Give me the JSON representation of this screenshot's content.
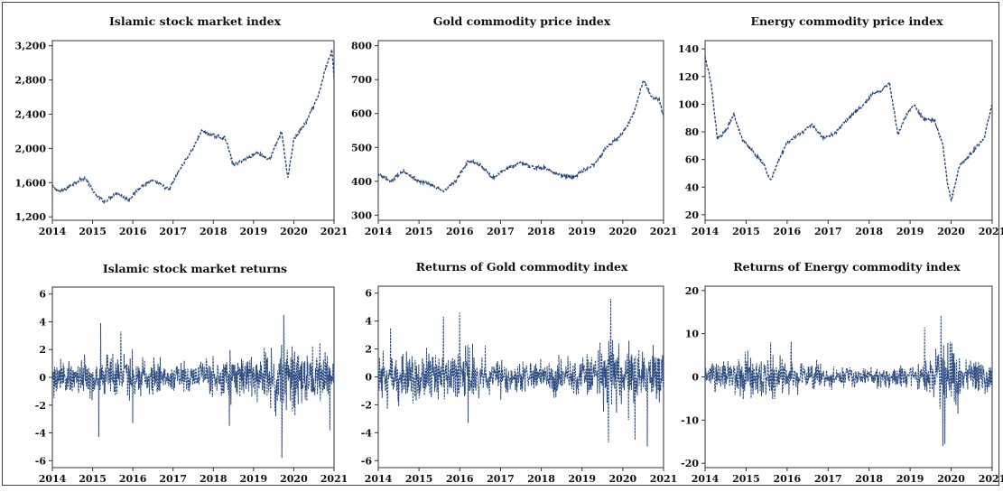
{
  "chart_data": [
    {
      "type": "line",
      "title": "Islamic stock market index",
      "x_ticks": [
        "2014",
        "2015",
        "2016",
        "2017",
        "2018",
        "2019",
        "2020",
        "2021"
      ],
      "ylim": [
        1160,
        3260
      ],
      "y_ticks": [
        1200,
        1600,
        2000,
        2400,
        2800,
        3200
      ],
      "y_tick_labels": [
        "1,200",
        "1,600",
        "2,000",
        "2,400",
        "2,800",
        "3,200"
      ],
      "series": [
        {
          "line_style": "dashed",
          "x": [
            2014.0,
            2014.2,
            2014.5,
            2014.8,
            2015.1,
            2015.3,
            2015.6,
            2015.9,
            2016.2,
            2016.5,
            2016.9,
            2017.2,
            2017.5,
            2017.7,
            2018.0,
            2018.3,
            2018.5,
            2018.8,
            2019.1,
            2019.4,
            2019.7,
            2019.85,
            2020.0,
            2020.3,
            2020.6,
            2020.8,
            2020.95,
            2021.0
          ],
          "values": [
            1550,
            1490,
            1580,
            1660,
            1440,
            1380,
            1480,
            1400,
            1560,
            1620,
            1520,
            1780,
            2000,
            2200,
            2150,
            2120,
            1800,
            1880,
            1950,
            1870,
            2200,
            1650,
            2100,
            2300,
            2600,
            2950,
            3150,
            2830
          ]
        }
      ]
    },
    {
      "type": "line",
      "title": "Gold commodity price index",
      "x_ticks": [
        "2014",
        "2015",
        "2016",
        "2017",
        "2018",
        "2019",
        "2020",
        "2021"
      ],
      "ylim": [
        285,
        815
      ],
      "y_ticks": [
        300,
        400,
        500,
        600,
        700,
        800
      ],
      "y_tick_labels": [
        "300",
        "400",
        "500",
        "600",
        "700",
        "800"
      ],
      "series": [
        {
          "line_style": "dashed",
          "x": [
            2014.0,
            2014.3,
            2014.6,
            2015.0,
            2015.3,
            2015.6,
            2015.9,
            2016.2,
            2016.5,
            2016.8,
            2017.2,
            2017.5,
            2017.8,
            2018.1,
            2018.4,
            2018.8,
            2019.0,
            2019.3,
            2019.6,
            2019.9,
            2020.1,
            2020.3,
            2020.5,
            2020.7,
            2020.9,
            2021.0
          ],
          "values": [
            420,
            400,
            430,
            400,
            390,
            370,
            400,
            460,
            450,
            410,
            440,
            455,
            440,
            440,
            420,
            410,
            430,
            450,
            500,
            530,
            560,
            610,
            700,
            650,
            640,
            590
          ]
        }
      ]
    },
    {
      "type": "line",
      "title": "Energy commodity price index",
      "x_ticks": [
        "2014",
        "2015",
        "2016",
        "2017",
        "2018",
        "2019",
        "2020",
        "2021"
      ],
      "ylim": [
        16,
        146
      ],
      "y_ticks": [
        20,
        40,
        60,
        80,
        100,
        120,
        140
      ],
      "y_tick_labels": [
        "20",
        "40",
        "60",
        "80",
        "100",
        "120",
        "140"
      ],
      "series": [
        {
          "line_style": "dashed",
          "x": [
            2014.0,
            2014.15,
            2014.3,
            2014.5,
            2014.7,
            2014.9,
            2015.1,
            2015.4,
            2015.6,
            2015.8,
            2016.0,
            2016.3,
            2016.6,
            2016.9,
            2017.2,
            2017.5,
            2017.8,
            2018.1,
            2018.3,
            2018.5,
            2018.7,
            2018.9,
            2019.1,
            2019.3,
            2019.6,
            2019.8,
            2019.9,
            2020.0,
            2020.2,
            2020.5,
            2020.8,
            2021.0
          ],
          "values": [
            135,
            115,
            75,
            80,
            93,
            75,
            68,
            58,
            45,
            60,
            72,
            78,
            85,
            75,
            80,
            90,
            98,
            108,
            110,
            115,
            78,
            92,
            100,
            90,
            88,
            70,
            45,
            30,
            55,
            65,
            75,
            100
          ]
        }
      ]
    },
    {
      "type": "line",
      "title": "Islamic stock market returns",
      "x_ticks": [
        "2014",
        "2015",
        "2016",
        "2017",
        "2018",
        "2019",
        "2020",
        "2021"
      ],
      "ylim": [
        -6.5,
        6.5
      ],
      "y_ticks": [
        -6,
        -4,
        -2,
        0,
        2,
        4,
        6
      ],
      "y_tick_labels": [
        "-6",
        "-4",
        "-2",
        "0",
        "2",
        "4",
        "6"
      ],
      "base_std": 0.55,
      "volatility_x": [
        2014.0,
        2015.0,
        2015.5,
        2016.5,
        2017.5,
        2018.2,
        2019.0,
        2019.7,
        2019.9,
        2020.3,
        2021.0
      ],
      "volatility_level": [
        1.0,
        1.3,
        1.6,
        1.1,
        0.9,
        1.5,
        1.2,
        2.8,
        2.2,
        1.4,
        1.8
      ],
      "spikes": [
        {
          "x": 2015.2,
          "value": 3.9
        },
        {
          "x": 2015.15,
          "value": -4.3
        },
        {
          "x": 2015.7,
          "value": 3.3
        },
        {
          "x": 2016.0,
          "value": -3.3
        },
        {
          "x": 2018.4,
          "value": -3.5
        },
        {
          "x": 2019.7,
          "value": -5.8
        },
        {
          "x": 2019.75,
          "value": 4.5
        },
        {
          "x": 2020.9,
          "value": -3.8
        }
      ]
    },
    {
      "type": "line",
      "title": "Returns of Gold commodity index",
      "x_ticks": [
        "2014",
        "2015",
        "2016",
        "2017",
        "2018",
        "2019",
        "2020",
        "2021"
      ],
      "ylim": [
        -6.5,
        6.5
      ],
      "y_ticks": [
        -6,
        -4,
        -2,
        0,
        2,
        4,
        6
      ],
      "y_tick_labels": [
        "-6",
        "-4",
        "-2",
        "0",
        "2",
        "4",
        "6"
      ],
      "base_std": 0.55,
      "volatility_x": [
        2014.0,
        2014.6,
        2015.5,
        2016.0,
        2016.8,
        2018.0,
        2019.0,
        2019.7,
        2020.0,
        2020.5,
        2021.0
      ],
      "volatility_level": [
        1.3,
        1.8,
        1.5,
        1.7,
        1.1,
        1.0,
        1.3,
        2.6,
        2.0,
        1.9,
        1.7
      ],
      "spikes": [
        {
          "x": 2014.3,
          "value": 3.5
        },
        {
          "x": 2015.6,
          "value": 4.3
        },
        {
          "x": 2016.0,
          "value": 4.6
        },
        {
          "x": 2016.2,
          "value": -3.3
        },
        {
          "x": 2019.7,
          "value": 5.6
        },
        {
          "x": 2019.65,
          "value": -4.7
        },
        {
          "x": 2020.6,
          "value": -5.0
        },
        {
          "x": 2020.3,
          "value": -4.5
        }
      ]
    },
    {
      "type": "line",
      "title": "Returns of Energy commodity index",
      "x_ticks": [
        "2014",
        "2015",
        "2016",
        "2017",
        "2018",
        "2019",
        "2020",
        "2021"
      ],
      "ylim": [
        -21,
        21
      ],
      "y_ticks": [
        -20,
        -10,
        0,
        10,
        20
      ],
      "y_tick_labels": [
        "-20",
        "-10",
        "0",
        "10",
        "20"
      ],
      "base_std": 1.3,
      "volatility_x": [
        2014.0,
        2014.8,
        2015.5,
        2016.2,
        2017.0,
        2018.0,
        2019.0,
        2019.6,
        2019.8,
        2020.0,
        2020.4,
        2021.0
      ],
      "volatility_level": [
        1.2,
        1.6,
        1.9,
        1.4,
        0.9,
        0.8,
        1.0,
        1.6,
        4.2,
        3.0,
        1.6,
        1.3
      ],
      "spikes": [
        {
          "x": 2019.35,
          "value": 11.5
        },
        {
          "x": 2019.75,
          "value": 14.2
        },
        {
          "x": 2019.8,
          "value": -16.0
        },
        {
          "x": 2019.85,
          "value": -15.5
        },
        {
          "x": 2015.6,
          "value": 8.0
        },
        {
          "x": 2016.1,
          "value": 8.2
        }
      ]
    }
  ]
}
